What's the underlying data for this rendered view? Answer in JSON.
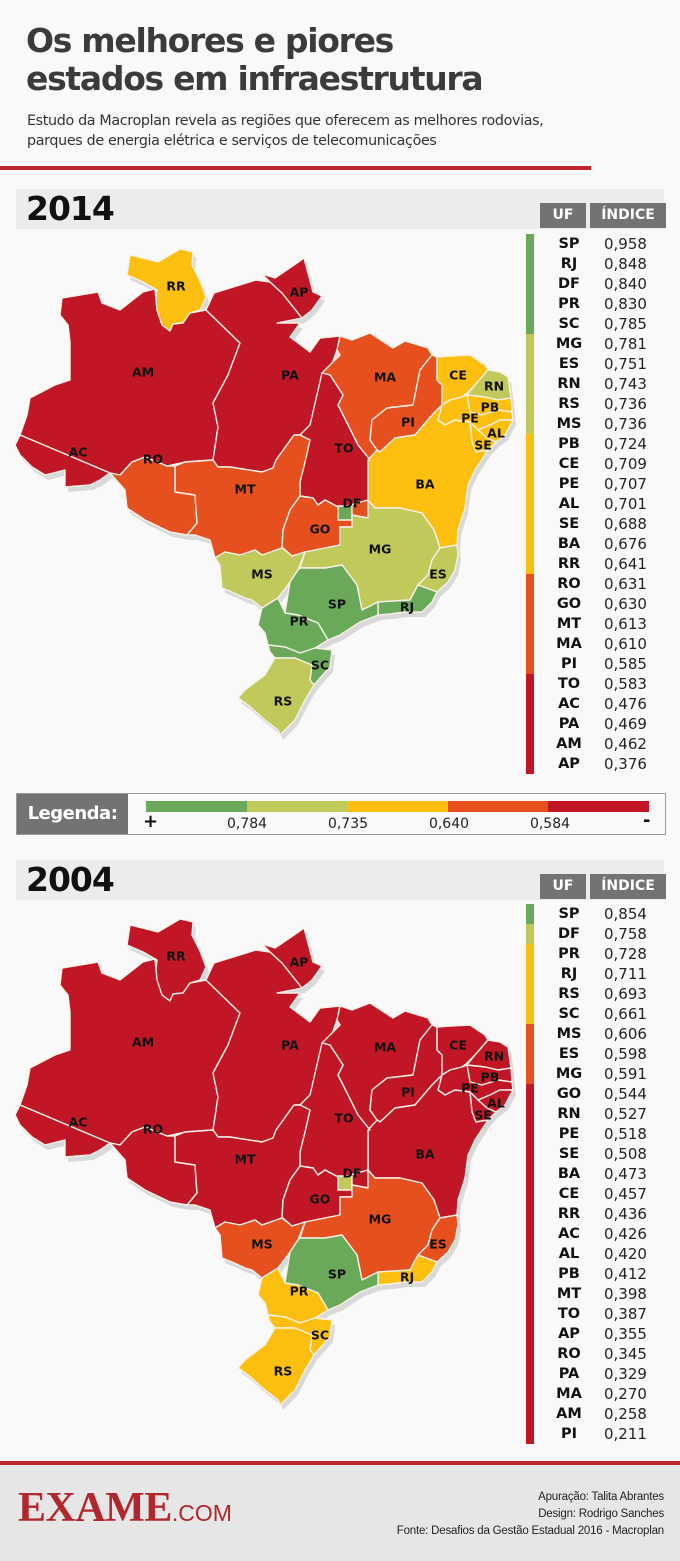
{
  "header": {
    "title_line1": "Os melhores e piores",
    "title_line2": "estados em infraestrutura",
    "subtitle_line1": "Estudo da Macroplan revela as regiões que oferecem as melhores rodovias,",
    "subtitle_line2": "parques de energia elétrica e serviços de telecomunicações"
  },
  "colors": {
    "tier1": "#6aa85a",
    "tier2": "#c0c95a",
    "tier3": "#fdbf0f",
    "tier4": "#e6501e",
    "tier5": "#c01626",
    "accent_red": "#c0272d",
    "header_gray": "#737373"
  },
  "table_headers": {
    "uf": "UF",
    "index": "ÍNDICE"
  },
  "legend": {
    "label": "Legenda:",
    "plus": "+",
    "minus": "-",
    "thresholds": [
      "0,784",
      "0,735",
      "0,640",
      "0,584"
    ]
  },
  "sections": [
    {
      "year": "2014",
      "rows": [
        {
          "uf": "SP",
          "value": "0,958",
          "tier": 1
        },
        {
          "uf": "RJ",
          "value": "0,848",
          "tier": 1
        },
        {
          "uf": "DF",
          "value": "0,840",
          "tier": 1
        },
        {
          "uf": "PR",
          "value": "0,830",
          "tier": 1
        },
        {
          "uf": "SC",
          "value": "0,785",
          "tier": 1
        },
        {
          "uf": "MG",
          "value": "0,781",
          "tier": 2
        },
        {
          "uf": "ES",
          "value": "0,751",
          "tier": 2
        },
        {
          "uf": "RN",
          "value": "0,743",
          "tier": 2
        },
        {
          "uf": "RS",
          "value": "0,736",
          "tier": 2
        },
        {
          "uf": "MS",
          "value": "0,736",
          "tier": 2
        },
        {
          "uf": "PB",
          "value": "0,724",
          "tier": 3
        },
        {
          "uf": "CE",
          "value": "0,709",
          "tier": 3
        },
        {
          "uf": "PE",
          "value": "0,707",
          "tier": 3
        },
        {
          "uf": "AL",
          "value": "0,701",
          "tier": 3
        },
        {
          "uf": "SE",
          "value": "0,688",
          "tier": 3
        },
        {
          "uf": "BA",
          "value": "0,676",
          "tier": 3
        },
        {
          "uf": "RR",
          "value": "0,641",
          "tier": 3
        },
        {
          "uf": "RO",
          "value": "0,631",
          "tier": 4
        },
        {
          "uf": "GO",
          "value": "0,630",
          "tier": 4
        },
        {
          "uf": "MT",
          "value": "0,613",
          "tier": 4
        },
        {
          "uf": "MA",
          "value": "0,610",
          "tier": 4
        },
        {
          "uf": "PI",
          "value": "0,585",
          "tier": 4
        },
        {
          "uf": "TO",
          "value": "0,583",
          "tier": 5
        },
        {
          "uf": "AC",
          "value": "0,476",
          "tier": 5
        },
        {
          "uf": "PA",
          "value": "0,469",
          "tier": 5
        },
        {
          "uf": "AM",
          "value": "0,462",
          "tier": 5
        },
        {
          "uf": "AP",
          "value": "0,376",
          "tier": 5
        }
      ]
    },
    {
      "year": "2004",
      "rows": [
        {
          "uf": "SP",
          "value": "0,854",
          "tier": 1
        },
        {
          "uf": "DF",
          "value": "0,758",
          "tier": 2
        },
        {
          "uf": "PR",
          "value": "0,728",
          "tier": 3
        },
        {
          "uf": "RJ",
          "value": "0,711",
          "tier": 3
        },
        {
          "uf": "RS",
          "value": "0,693",
          "tier": 3
        },
        {
          "uf": "SC",
          "value": "0,661",
          "tier": 3
        },
        {
          "uf": "MS",
          "value": "0,606",
          "tier": 4
        },
        {
          "uf": "ES",
          "value": "0,598",
          "tier": 4
        },
        {
          "uf": "MG",
          "value": "0,591",
          "tier": 4
        },
        {
          "uf": "GO",
          "value": "0,544",
          "tier": 5
        },
        {
          "uf": "RN",
          "value": "0,527",
          "tier": 5
        },
        {
          "uf": "PE",
          "value": "0,518",
          "tier": 5
        },
        {
          "uf": "SE",
          "value": "0,508",
          "tier": 5
        },
        {
          "uf": "BA",
          "value": "0,473",
          "tier": 5
        },
        {
          "uf": "CE",
          "value": "0,457",
          "tier": 5
        },
        {
          "uf": "RR",
          "value": "0,436",
          "tier": 5
        },
        {
          "uf": "AC",
          "value": "0,426",
          "tier": 5
        },
        {
          "uf": "AL",
          "value": "0,420",
          "tier": 5
        },
        {
          "uf": "PB",
          "value": "0,412",
          "tier": 5
        },
        {
          "uf": "MT",
          "value": "0,398",
          "tier": 5
        },
        {
          "uf": "TO",
          "value": "0,387",
          "tier": 5
        },
        {
          "uf": "AP",
          "value": "0,355",
          "tier": 5
        },
        {
          "uf": "RO",
          "value": "0,345",
          "tier": 5
        },
        {
          "uf": "PA",
          "value": "0,329",
          "tier": 5
        },
        {
          "uf": "MA",
          "value": "0,270",
          "tier": 5
        },
        {
          "uf": "AM",
          "value": "0,258",
          "tier": 5
        },
        {
          "uf": "PI",
          "value": "0,211",
          "tier": 5
        }
      ]
    }
  ],
  "footer": {
    "logo_main": "EXAME",
    "logo_suffix": ".COM",
    "credit_research": "Apuração: Talita Abrantes",
    "credit_design": "Design: Rodrigo Sanches",
    "credit_source": "Fonte: Desafios da Gestão Estadual 2016 - Macroplan"
  },
  "chart_data": [
    {
      "type": "choropleth-map",
      "title": "2014",
      "xlabel": "UF",
      "ylabel": "Índice",
      "legend_bins": [
        {
          "label": "> 0,784",
          "color": "#6aa85a"
        },
        {
          "label": "0,735 – 0,784",
          "color": "#c0c95a"
        },
        {
          "label": "0,640 – 0,735",
          "color": "#fdbf0f"
        },
        {
          "label": "0,584 – 0,640",
          "color": "#e6501e"
        },
        {
          "label": "< 0,584",
          "color": "#c01626"
        }
      ],
      "categories": [
        "SP",
        "RJ",
        "DF",
        "PR",
        "SC",
        "MG",
        "ES",
        "RN",
        "RS",
        "MS",
        "PB",
        "CE",
        "PE",
        "AL",
        "SE",
        "BA",
        "RR",
        "RO",
        "GO",
        "MT",
        "MA",
        "PI",
        "TO",
        "AC",
        "PA",
        "AM",
        "AP"
      ],
      "values": [
        0.958,
        0.848,
        0.84,
        0.83,
        0.785,
        0.781,
        0.751,
        0.743,
        0.736,
        0.736,
        0.724,
        0.709,
        0.707,
        0.701,
        0.688,
        0.676,
        0.641,
        0.631,
        0.63,
        0.613,
        0.61,
        0.585,
        0.583,
        0.476,
        0.469,
        0.462,
        0.376
      ]
    },
    {
      "type": "choropleth-map",
      "title": "2004",
      "xlabel": "UF",
      "ylabel": "Índice",
      "legend_bins": [
        {
          "label": "> 0,784",
          "color": "#6aa85a"
        },
        {
          "label": "0,735 – 0,784",
          "color": "#c0c95a"
        },
        {
          "label": "0,640 – 0,735",
          "color": "#fdbf0f"
        },
        {
          "label": "0,584 – 0,640",
          "color": "#e6501e"
        },
        {
          "label": "< 0,584",
          "color": "#c01626"
        }
      ],
      "categories": [
        "SP",
        "DF",
        "PR",
        "RJ",
        "RS",
        "SC",
        "MS",
        "ES",
        "MG",
        "GO",
        "RN",
        "PE",
        "SE",
        "BA",
        "CE",
        "RR",
        "AC",
        "AL",
        "PB",
        "MT",
        "TO",
        "AP",
        "RO",
        "PA",
        "MA",
        "AM",
        "PI"
      ],
      "values": [
        0.854,
        0.758,
        0.728,
        0.711,
        0.693,
        0.661,
        0.606,
        0.598,
        0.591,
        0.544,
        0.527,
        0.518,
        0.508,
        0.473,
        0.457,
        0.436,
        0.426,
        0.42,
        0.412,
        0.398,
        0.387,
        0.355,
        0.345,
        0.329,
        0.27,
        0.258,
        0.211
      ]
    }
  ]
}
